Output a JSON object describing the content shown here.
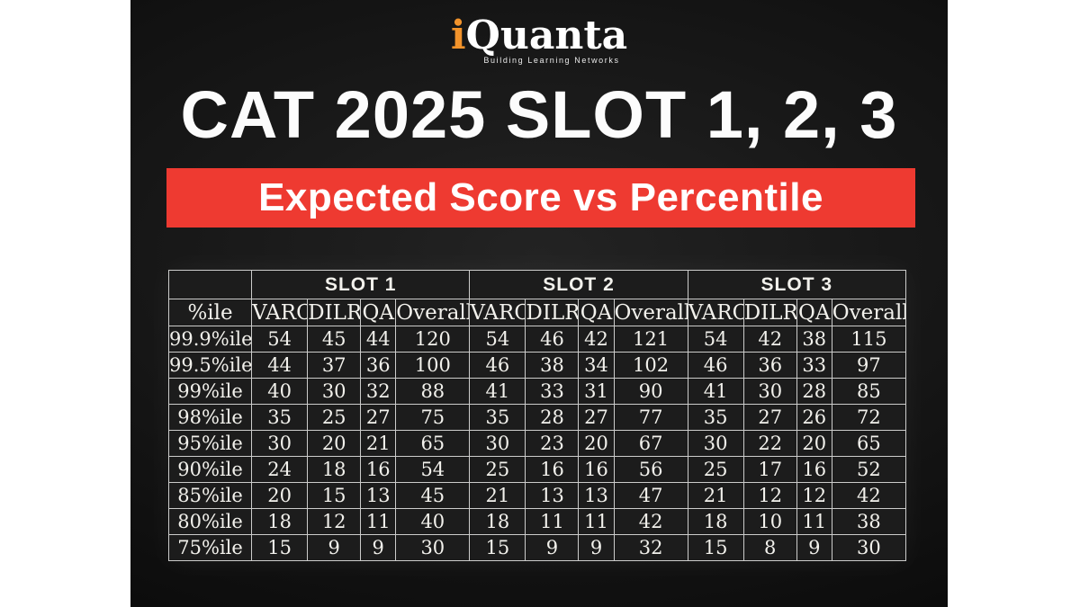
{
  "logo": {
    "i_letter": "i",
    "name_rest": "Quanta",
    "tagline": "Building Learning Networks"
  },
  "title": "CAT 2025 SLOT 1, 2, 3",
  "banner": {
    "text": "Expected Score vs Percentile"
  },
  "colors": {
    "banner_red": "#ee3a31",
    "gold_slot_header": "#f2a83c",
    "gold_row_label": "#cf9b45",
    "logo_orange": "#f2932b",
    "table_border": "#cccccb",
    "board_black": "#0b0b0b",
    "text_white": "#f2f1ec"
  },
  "chart_data": {
    "type": "table",
    "title": "CAT 2025 SLOT 1, 2, 3",
    "subtitle": "Expected Score vs Percentile",
    "slot_headers": [
      "SLOT 1",
      "SLOT 2",
      "SLOT 3"
    ],
    "percentile_header": "%ile",
    "sub_headers": [
      "VARC",
      "DILR",
      "QA",
      "Overall"
    ],
    "rows": [
      {
        "percentile": "99.9%ile",
        "slots": [
          [
            54,
            45,
            44,
            120
          ],
          [
            54,
            46,
            42,
            121
          ],
          [
            54,
            42,
            38,
            115
          ]
        ]
      },
      {
        "percentile": "99.5%ile",
        "slots": [
          [
            44,
            37,
            36,
            100
          ],
          [
            46,
            38,
            34,
            102
          ],
          [
            46,
            36,
            33,
            97
          ]
        ]
      },
      {
        "percentile": "99%ile",
        "slots": [
          [
            40,
            30,
            32,
            88
          ],
          [
            41,
            33,
            31,
            90
          ],
          [
            41,
            30,
            28,
            85
          ]
        ]
      },
      {
        "percentile": "98%ile",
        "slots": [
          [
            35,
            25,
            27,
            75
          ],
          [
            35,
            28,
            27,
            77
          ],
          [
            35,
            27,
            26,
            72
          ]
        ]
      },
      {
        "percentile": "95%ile",
        "slots": [
          [
            30,
            20,
            21,
            65
          ],
          [
            30,
            23,
            20,
            67
          ],
          [
            30,
            22,
            20,
            65
          ]
        ]
      },
      {
        "percentile": "90%ile",
        "slots": [
          [
            24,
            18,
            16,
            54
          ],
          [
            25,
            16,
            16,
            56
          ],
          [
            25,
            17,
            16,
            52
          ]
        ]
      },
      {
        "percentile": "85%ile",
        "slots": [
          [
            20,
            15,
            13,
            45
          ],
          [
            21,
            13,
            13,
            47
          ],
          [
            21,
            12,
            12,
            42
          ]
        ]
      },
      {
        "percentile": "80%ile",
        "slots": [
          [
            18,
            12,
            11,
            40
          ],
          [
            18,
            11,
            11,
            42
          ],
          [
            18,
            10,
            11,
            38
          ]
        ]
      },
      {
        "percentile": "75%ile",
        "slots": [
          [
            15,
            9,
            9,
            30
          ],
          [
            15,
            9,
            9,
            32
          ],
          [
            15,
            8,
            9,
            30
          ]
        ]
      }
    ]
  }
}
